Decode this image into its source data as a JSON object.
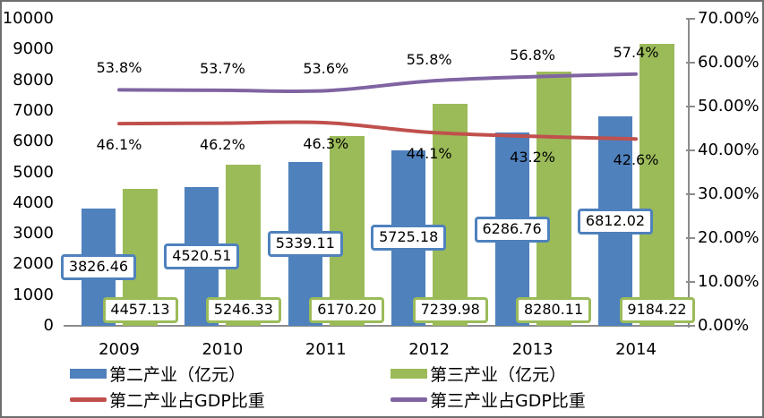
{
  "chart_data": {
    "type": "bar",
    "subtype": "bar-and-line-combo",
    "title": "",
    "categories": [
      "2009",
      "2010",
      "2011",
      "2012",
      "2013",
      "2014"
    ],
    "series": [
      {
        "name": "第二产业（亿元）",
        "type": "bar",
        "axis": "left",
        "color": "#4f81bd",
        "values": [
          3826.46,
          4520.51,
          5339.11,
          5725.18,
          6286.76,
          6812.02
        ],
        "data_labels": [
          "3826.46",
          "4520.51",
          "5339.11",
          "5725.18",
          "6286.76",
          "6812.02"
        ]
      },
      {
        "name": "第三产业（亿元）",
        "type": "bar",
        "axis": "left",
        "color": "#9bbb59",
        "values": [
          4457.13,
          5246.33,
          6170.2,
          7239.98,
          8280.11,
          9184.22
        ],
        "data_labels": [
          "4457.13",
          "5246.33",
          "6170.20",
          "7239.98",
          "8280.11",
          "9184.22"
        ]
      },
      {
        "name": "第二产业占GDP比重",
        "type": "line",
        "axis": "right",
        "color": "#c0504d",
        "smooth": true,
        "label_position": "below",
        "values": [
          46.1,
          46.2,
          46.3,
          44.1,
          43.2,
          42.6
        ],
        "data_labels": [
          "46.1%",
          "46.2%",
          "46.3%",
          "44.1%",
          "43.2%",
          "42.6%"
        ]
      },
      {
        "name": "第三产业占GDP比重",
        "type": "line",
        "axis": "right",
        "color": "#8064a2",
        "smooth": true,
        "label_position": "above",
        "values": [
          53.8,
          53.7,
          53.6,
          55.8,
          56.8,
          57.4
        ],
        "data_labels": [
          "53.8%",
          "53.7%",
          "53.6%",
          "55.8%",
          "56.8%",
          "57.4%"
        ]
      }
    ],
    "left_axis": {
      "min": 0,
      "max": 10000,
      "step": 1000,
      "tick_labels": [
        "0",
        "1000",
        "2000",
        "3000",
        "4000",
        "5000",
        "6000",
        "7000",
        "8000",
        "9000",
        "10000"
      ]
    },
    "right_axis": {
      "min": 0,
      "max": 70,
      "step": 10,
      "tick_labels": [
        "0.00%",
        "10.00%",
        "20.00%",
        "30.00%",
        "40.00%",
        "50.00%",
        "60.00%",
        "70.00%"
      ]
    },
    "grid": false,
    "legend_position": "bottom",
    "legend": [
      {
        "series": 0,
        "label": "第二产业（亿元）"
      },
      {
        "series": 1,
        "label": "第三产业（亿元）"
      },
      {
        "series": 2,
        "label": "第二产业占GDP比重"
      },
      {
        "series": 3,
        "label": "第三产业占GDP比重"
      }
    ]
  }
}
